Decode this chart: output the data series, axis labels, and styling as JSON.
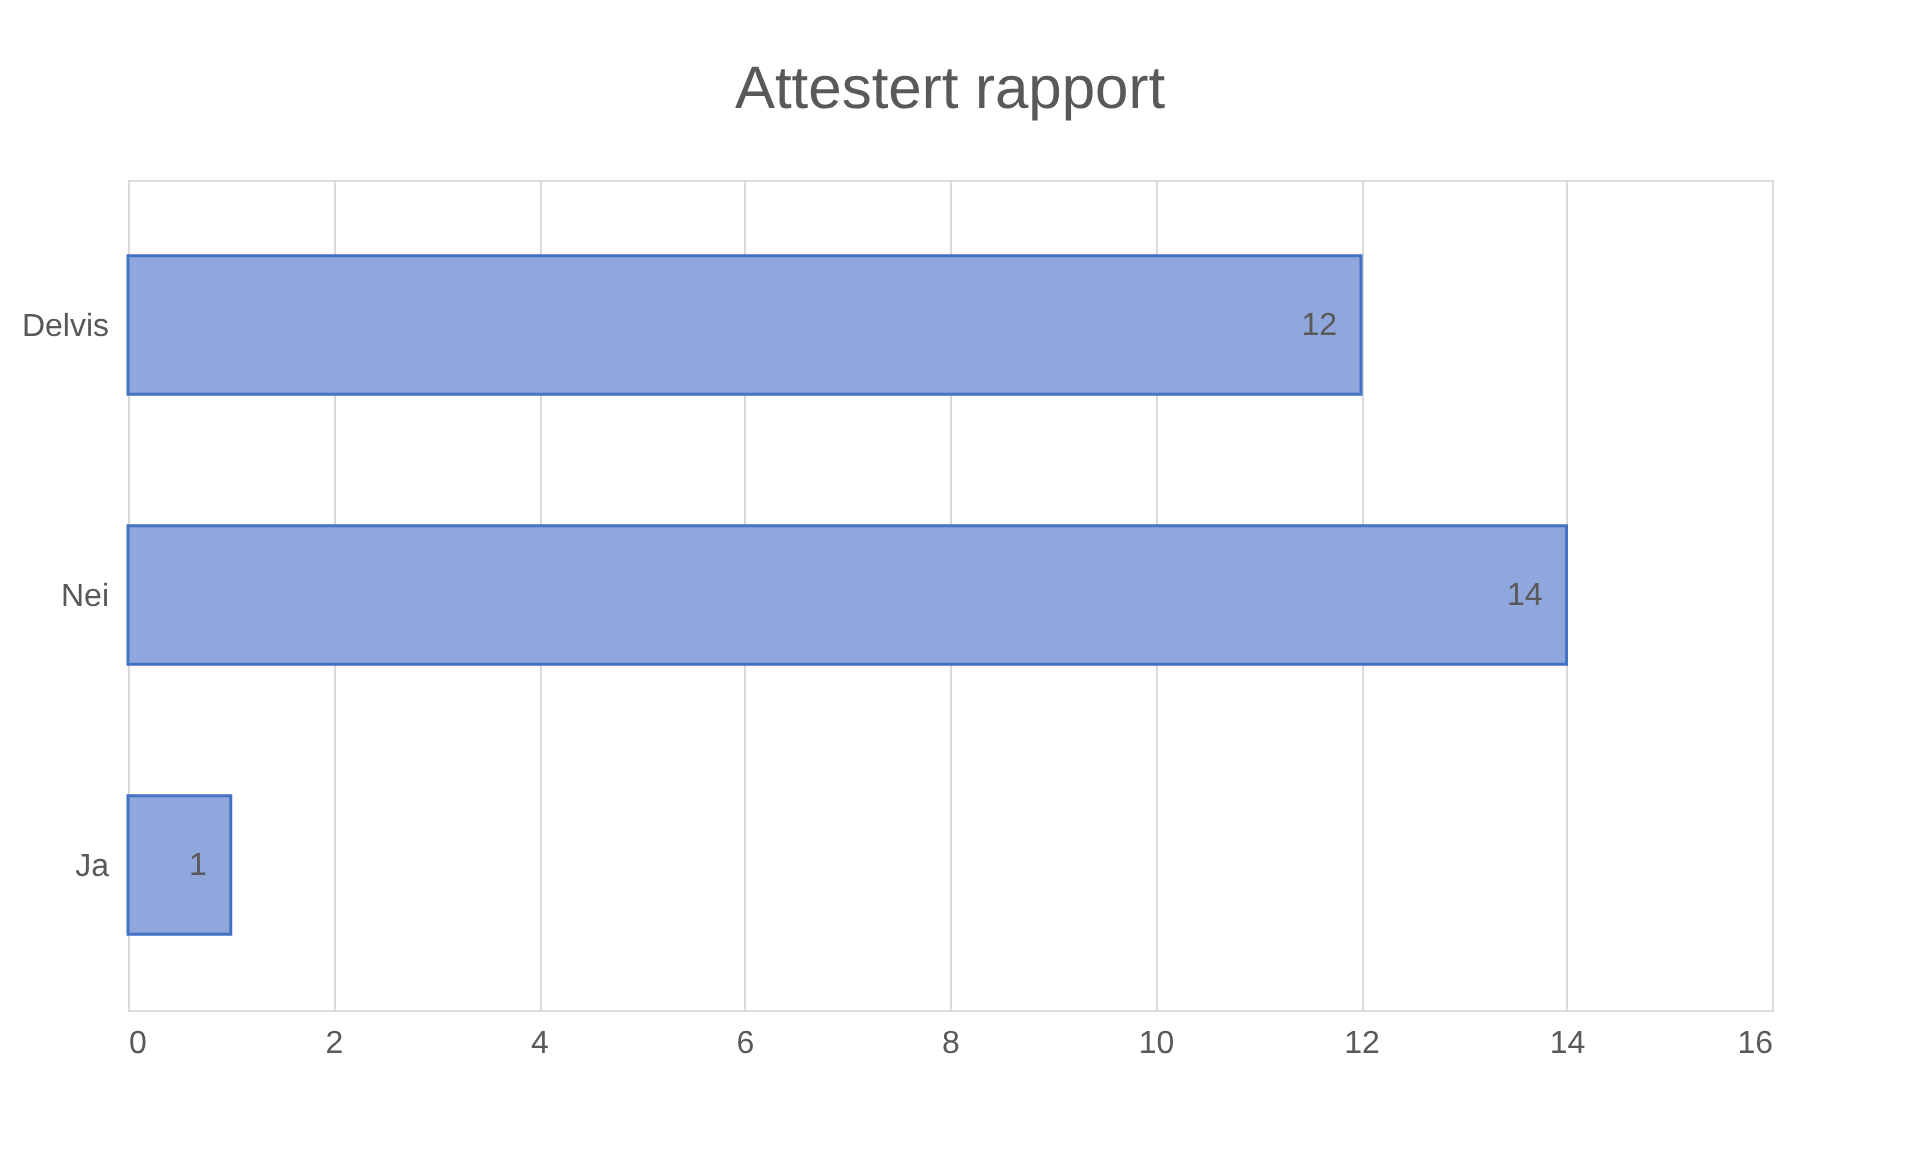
{
  "chart_data": {
    "type": "bar",
    "orientation": "horizontal",
    "title": "Attestert rapport",
    "categories": [
      "Delvis",
      "Nei",
      "Ja"
    ],
    "values": [
      12,
      14,
      1
    ],
    "color": "#8fa7dc",
    "xlim": [
      0,
      16
    ],
    "xticks": [
      0,
      2,
      4,
      6,
      8,
      10,
      12,
      14,
      16
    ],
    "grid": "x",
    "data_labels": true
  }
}
